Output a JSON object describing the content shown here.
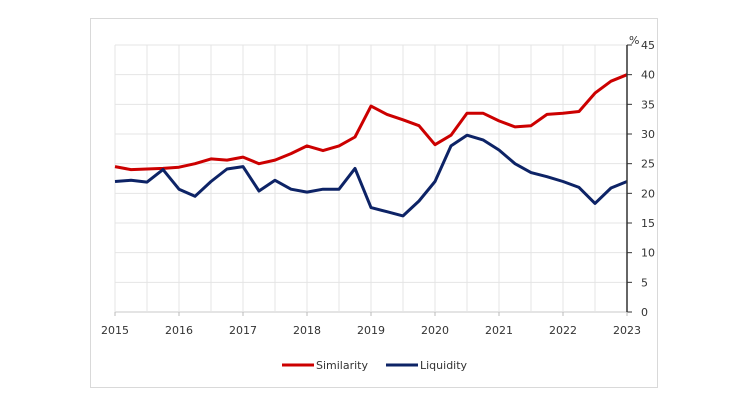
{
  "chart_data": {
    "type": "line",
    "x_start": "2015 Q1",
    "x_end": "2023 Q1",
    "frequency": "quarterly",
    "x_tick_labels": [
      "2015",
      "2016",
      "2017",
      "2018",
      "2019",
      "2020",
      "2021",
      "2022",
      "2023"
    ],
    "y_unit": "%",
    "ylim": [
      0,
      45
    ],
    "y_ticks": [
      0,
      5,
      10,
      15,
      20,
      25,
      30,
      35,
      40,
      45
    ],
    "y_axis_side": "right",
    "grid": true,
    "legend": "bottom",
    "series": [
      {
        "name": "Similarity",
        "color": "#cc0000",
        "values": [
          24.5,
          24.0,
          24.1,
          24.2,
          24.4,
          25.0,
          25.8,
          25.6,
          26.1,
          25.0,
          25.6,
          26.7,
          28.0,
          27.2,
          28.0,
          29.5,
          34.7,
          33.3,
          32.4,
          31.4,
          28.2,
          29.8,
          33.5,
          33.5,
          32.2,
          31.2,
          31.4,
          33.3,
          33.5,
          33.8,
          36.9,
          38.9,
          40.0
        ]
      },
      {
        "name": "Liquidity",
        "color": "#0d2366",
        "values": [
          22.0,
          22.2,
          21.9,
          24.0,
          20.7,
          19.5,
          22.0,
          24.1,
          24.5,
          20.4,
          22.2,
          20.7,
          20.2,
          20.7,
          20.7,
          24.2,
          17.6,
          16.9,
          16.2,
          18.7,
          22.0,
          28.0,
          29.8,
          29.0,
          27.3,
          25.0,
          23.5,
          22.8,
          22.0,
          21.0,
          18.3,
          20.9,
          22.0
        ]
      }
    ]
  }
}
